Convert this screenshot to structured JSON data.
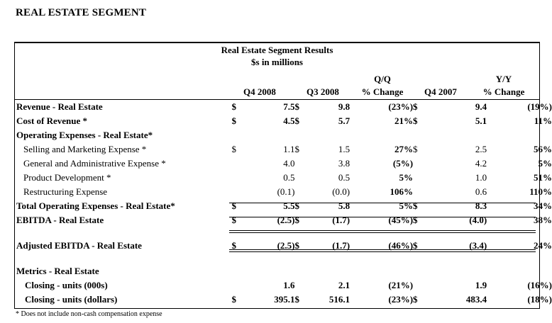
{
  "heading": "REAL ESTATE SEGMENT",
  "table_title": "Real Estate Segment Results",
  "table_subtitle": "$s in millions",
  "columns": {
    "q4_2008": "Q4 2008",
    "q3_2008": "Q3 2008",
    "qq_top": "Q/Q",
    "qq_bottom": "% Change",
    "q4_2007": "Q4 2007",
    "yy_top": "Y/Y",
    "yy_bottom": "% Change"
  },
  "rows": [
    {
      "label": "Revenue - Real Estate",
      "cur1": "$",
      "q4_2008": "7.5",
      "cur2": "$",
      "q3_2008": "9.8",
      "qq": "(23%)",
      "cur3": "$",
      "q4_2007": "9.4",
      "yy": "(19%)"
    },
    {
      "label": "Cost of Revenue *",
      "cur1": "$",
      "q4_2008": "4.5",
      "cur2": "$",
      "q3_2008": "5.7",
      "qq": "21%",
      "cur3": "$",
      "q4_2007": "5.1",
      "yy": "11%"
    },
    {
      "label": "Operating Expenses - Real Estate*"
    },
    {
      "label": "Selling and Marketing Expense *",
      "cur1": "$",
      "q4_2008": "1.1",
      "cur2": "$",
      "q3_2008": "1.5",
      "qq": "27%",
      "cur3": "$",
      "q4_2007": "2.5",
      "yy": "56%"
    },
    {
      "label": "General and Administrative Expense *",
      "q4_2008": "4.0",
      "q3_2008": "3.8",
      "qq": "(5%)",
      "q4_2007": "4.2",
      "yy": "5%"
    },
    {
      "label": "Product Development *",
      "q4_2008": "0.5",
      "q3_2008": "0.5",
      "qq": "5%",
      "q4_2007": "1.0",
      "yy": "51%"
    },
    {
      "label": "Restructuring Expense",
      "q4_2008": "(0.1)",
      "q3_2008": "(0.0)",
      "qq": "106%",
      "q4_2007": "0.6",
      "yy": "110%"
    },
    {
      "label": "Total Operating Expenses - Real Estate*",
      "cur1": "$",
      "q4_2008": "5.5",
      "cur2": "$",
      "q3_2008": "5.8",
      "qq": "5%",
      "cur3": "$",
      "q4_2007": "8.3",
      "yy": "34%"
    },
    {
      "label": "EBITDA - Real Estate",
      "cur1": "$",
      "q4_2008": "(2.5)",
      "cur2": "$",
      "q3_2008": "(1.7)",
      "qq": "(45%)",
      "cur3": "$",
      "q4_2007": "(4.0)",
      "yy": "38%"
    },
    {
      "label": "Adjusted EBITDA - Real Estate",
      "cur1": "$",
      "q4_2008": "(2.5)",
      "cur2": "$",
      "q3_2008": "(1.7)",
      "qq": "(46%)",
      "cur3": "$",
      "q4_2007": "(3.4)",
      "yy": "24%"
    },
    {
      "label": "Metrics - Real Estate"
    },
    {
      "label": "Closing - units (000s)",
      "q4_2008": "1.6",
      "q3_2008": "2.1",
      "qq": "(21%)",
      "q4_2007": "1.9",
      "yy": "(16%)"
    },
    {
      "label": "Closing - units (dollars)",
      "cur1": "$",
      "q4_2008": "395.1",
      "cur2": "$",
      "q3_2008": "516.1",
      "qq": "(23%)",
      "cur3": "$",
      "q4_2007": "483.4",
      "yy": "(18%)"
    }
  ],
  "footnote": "* Does not include non-cash compensation expense"
}
